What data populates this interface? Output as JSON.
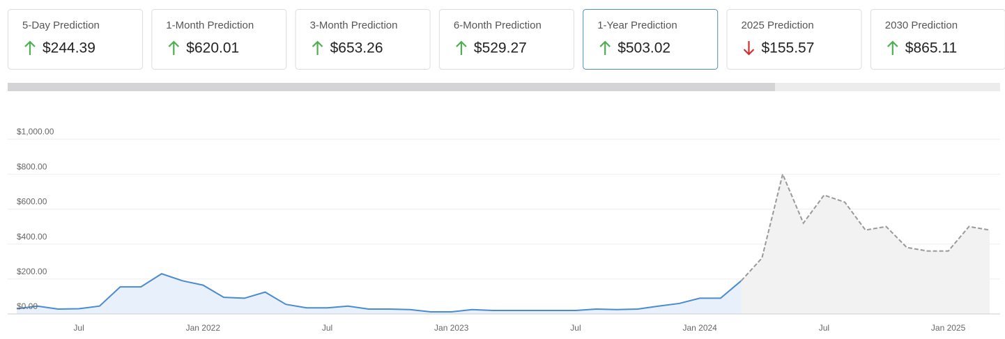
{
  "cards": [
    {
      "label": "5-Day Prediction",
      "value": "$244.39",
      "direction": "up"
    },
    {
      "label": "1-Month Prediction",
      "value": "$620.01",
      "direction": "up"
    },
    {
      "label": "3-Month Prediction",
      "value": "$653.26",
      "direction": "up"
    },
    {
      "label": "6-Month Prediction",
      "value": "$529.27",
      "direction": "up"
    },
    {
      "label": "1-Year Prediction",
      "value": "$503.02",
      "direction": "up",
      "active": true
    },
    {
      "label": "2025 Prediction",
      "value": "$155.57",
      "direction": "down"
    },
    {
      "label": "2030 Prediction",
      "value": "$865.11",
      "direction": "up"
    }
  ],
  "chart_data": {
    "type": "line",
    "x": [
      "2021-04",
      "2021-05",
      "2021-06",
      "2021-07",
      "2021-08",
      "2021-09",
      "2021-10",
      "2021-11",
      "2021-12",
      "2022-01",
      "2022-02",
      "2022-03",
      "2022-04",
      "2022-05",
      "2022-06",
      "2022-07",
      "2022-08",
      "2022-09",
      "2022-10",
      "2022-11",
      "2022-12",
      "2023-01",
      "2023-02",
      "2023-03",
      "2023-04",
      "2023-05",
      "2023-06",
      "2023-07",
      "2023-08",
      "2023-09",
      "2023-10",
      "2023-11",
      "2023-12",
      "2024-01",
      "2024-02",
      "2024-03",
      "2024-04",
      "2024-05",
      "2024-06",
      "2024-07",
      "2024-08",
      "2024-09",
      "2024-10",
      "2024-11",
      "2024-12",
      "2025-01",
      "2025-02",
      "2025-03"
    ],
    "series": [
      {
        "color": "#4a8ad0",
        "fill": "#e8f0fb",
        "dashed": false,
        "values": [
          30,
          45,
          28,
          30,
          45,
          155,
          155,
          230,
          190,
          165,
          95,
          90,
          125,
          55,
          35,
          35,
          45,
          28,
          28,
          25,
          12,
          12,
          25,
          20,
          20,
          20,
          20,
          20,
          28,
          25,
          28,
          45,
          60,
          90,
          90,
          190,
          null,
          null,
          null,
          null,
          null,
          null,
          null,
          null,
          null,
          null,
          null,
          null
        ]
      },
      {
        "color": "#999999",
        "fill": "#f2f2f2",
        "dashed": true,
        "values": [
          null,
          null,
          null,
          null,
          null,
          null,
          null,
          null,
          null,
          null,
          null,
          null,
          null,
          null,
          null,
          null,
          null,
          null,
          null,
          null,
          null,
          null,
          null,
          null,
          null,
          null,
          null,
          null,
          null,
          null,
          null,
          null,
          null,
          null,
          null,
          190,
          320,
          800,
          520,
          680,
          640,
          480,
          500,
          380,
          360,
          360,
          500,
          480
        ]
      }
    ],
    "xlim": [
      "2021-04",
      "2025-03"
    ],
    "xticks": [
      {
        "value": "2021-07",
        "label": "Jul"
      },
      {
        "value": "2022-01",
        "label": "Jan 2022"
      },
      {
        "value": "2022-07",
        "label": "Jul"
      },
      {
        "value": "2023-01",
        "label": "Jan 2023"
      },
      {
        "value": "2023-07",
        "label": "Jul"
      },
      {
        "value": "2024-01",
        "label": "Jan 2024"
      },
      {
        "value": "2024-07",
        "label": "Jul"
      },
      {
        "value": "2025-01",
        "label": "Jan 2025"
      }
    ],
    "ylim": [
      0,
      1000
    ],
    "yticks": [
      {
        "value": 0,
        "label": "$0.00"
      },
      {
        "value": 200,
        "label": "$200.00"
      },
      {
        "value": 400,
        "label": "$400.00"
      },
      {
        "value": 600,
        "label": "$600.00"
      },
      {
        "value": 800,
        "label": "$800.00"
      },
      {
        "value": 1000,
        "label": "$1,000.00"
      }
    ],
    "grid": true
  }
}
